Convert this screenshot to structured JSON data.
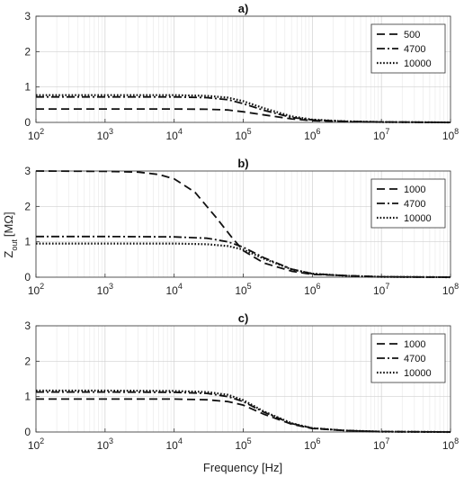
{
  "figure": {
    "ylabel_main": "Z",
    "ylabel_sub": "out",
    "ylabel_unit": "[MΩ]",
    "xlabel": "Frequency [Hz]"
  },
  "chart_data": [
    {
      "type": "line",
      "title": "a)",
      "xlabel": "",
      "ylabel": "",
      "xscale": "log",
      "xlim": [
        100,
        100000000
      ],
      "ylim": [
        0,
        3
      ],
      "x_ticks": [
        100,
        1000,
        10000,
        100000,
        1000000,
        10000000,
        100000000
      ],
      "x_tick_labels": [
        {
          "base": "10",
          "exp": "2"
        },
        {
          "base": "10",
          "exp": "3"
        },
        {
          "base": "10",
          "exp": "4"
        },
        {
          "base": "10",
          "exp": "5"
        },
        {
          "base": "10",
          "exp": "6"
        },
        {
          "base": "10",
          "exp": "7"
        },
        {
          "base": "10",
          "exp": "8"
        }
      ],
      "y_ticks": [
        0,
        1,
        2,
        3
      ],
      "y_tick_labels": [
        "0",
        "1",
        "2",
        "3"
      ],
      "grid": true,
      "legend_position": "top-right",
      "series": [
        {
          "name": "500",
          "style": "dashed",
          "x": [
            100,
            1000,
            10000,
            30000,
            60000,
            100000,
            200000,
            500000,
            1000000,
            3000000,
            10000000,
            100000000
          ],
          "y": [
            0.38,
            0.38,
            0.38,
            0.37,
            0.35,
            0.3,
            0.21,
            0.1,
            0.05,
            0.02,
            0.01,
            0.0
          ]
        },
        {
          "name": "4700",
          "style": "dashdot",
          "x": [
            100,
            1000,
            10000,
            30000,
            60000,
            100000,
            200000,
            500000,
            1000000,
            3000000,
            10000000,
            100000000
          ],
          "y": [
            0.72,
            0.72,
            0.72,
            0.7,
            0.64,
            0.53,
            0.34,
            0.14,
            0.07,
            0.03,
            0.01,
            0.0
          ]
        },
        {
          "name": "10000",
          "style": "dotted",
          "x": [
            100,
            1000,
            10000,
            30000,
            60000,
            100000,
            200000,
            500000,
            1000000,
            3000000,
            10000000,
            100000000
          ],
          "y": [
            0.77,
            0.77,
            0.77,
            0.75,
            0.7,
            0.6,
            0.4,
            0.17,
            0.08,
            0.03,
            0.01,
            0.0
          ]
        }
      ]
    },
    {
      "type": "line",
      "title": "b)",
      "xlabel": "",
      "ylabel": "Z_out [MΩ]",
      "xscale": "log",
      "xlim": [
        100,
        100000000
      ],
      "ylim": [
        0,
        3
      ],
      "x_ticks": [
        100,
        1000,
        10000,
        100000,
        1000000,
        10000000,
        100000000
      ],
      "x_tick_labels": [
        {
          "base": "10",
          "exp": "2"
        },
        {
          "base": "10",
          "exp": "3"
        },
        {
          "base": "10",
          "exp": "4"
        },
        {
          "base": "10",
          "exp": "5"
        },
        {
          "base": "10",
          "exp": "6"
        },
        {
          "base": "10",
          "exp": "7"
        },
        {
          "base": "10",
          "exp": "8"
        }
      ],
      "y_ticks": [
        0,
        1,
        2,
        3
      ],
      "y_tick_labels": [
        "0",
        "1",
        "2",
        "3"
      ],
      "grid": true,
      "legend_position": "top-right",
      "series": [
        {
          "name": "1000",
          "style": "dashed",
          "x": [
            100,
            1000,
            3000,
            6000,
            10000,
            20000,
            40000,
            70000,
            100000,
            200000,
            500000,
            1000000,
            10000000,
            100000000
          ],
          "y": [
            3.0,
            2.99,
            2.97,
            2.9,
            2.78,
            2.4,
            1.7,
            1.1,
            0.75,
            0.4,
            0.17,
            0.08,
            0.01,
            0.0
          ]
        },
        {
          "name": "4700",
          "style": "dashdot",
          "x": [
            100,
            1000,
            10000,
            30000,
            60000,
            100000,
            200000,
            500000,
            1000000,
            3000000,
            10000000,
            100000000
          ],
          "y": [
            1.15,
            1.15,
            1.14,
            1.1,
            1.0,
            0.85,
            0.55,
            0.23,
            0.1,
            0.04,
            0.01,
            0.0
          ]
        },
        {
          "name": "10000",
          "style": "dotted",
          "x": [
            100,
            1000,
            10000,
            30000,
            60000,
            100000,
            200000,
            500000,
            1000000,
            3000000,
            10000000,
            100000000
          ],
          "y": [
            0.95,
            0.95,
            0.95,
            0.93,
            0.88,
            0.78,
            0.52,
            0.22,
            0.1,
            0.04,
            0.01,
            0.0
          ]
        }
      ]
    },
    {
      "type": "line",
      "title": "c)",
      "xlabel": "Frequency [Hz]",
      "ylabel": "",
      "xscale": "log",
      "xlim": [
        100,
        100000000
      ],
      "ylim": [
        0,
        3
      ],
      "x_ticks": [
        100,
        1000,
        10000,
        100000,
        1000000,
        10000000,
        100000000
      ],
      "x_tick_labels": [
        {
          "base": "10",
          "exp": "2"
        },
        {
          "base": "10",
          "exp": "3"
        },
        {
          "base": "10",
          "exp": "4"
        },
        {
          "base": "10",
          "exp": "5"
        },
        {
          "base": "10",
          "exp": "6"
        },
        {
          "base": "10",
          "exp": "7"
        },
        {
          "base": "10",
          "exp": "8"
        }
      ],
      "y_ticks": [
        0,
        1,
        2,
        3
      ],
      "y_tick_labels": [
        "0",
        "1",
        "2",
        "3"
      ],
      "grid": true,
      "legend_position": "top-right",
      "series": [
        {
          "name": "1000",
          "style": "dashed",
          "x": [
            100,
            1000,
            10000,
            30000,
            60000,
            100000,
            200000,
            500000,
            1000000,
            3000000,
            10000000,
            100000000
          ],
          "y": [
            0.93,
            0.93,
            0.93,
            0.91,
            0.86,
            0.76,
            0.5,
            0.22,
            0.1,
            0.04,
            0.01,
            0.0
          ]
        },
        {
          "name": "4700",
          "style": "dashdot",
          "x": [
            100,
            1000,
            10000,
            30000,
            60000,
            100000,
            200000,
            500000,
            1000000,
            3000000,
            10000000,
            100000000
          ],
          "y": [
            1.13,
            1.13,
            1.12,
            1.09,
            1.0,
            0.86,
            0.56,
            0.24,
            0.11,
            0.04,
            0.01,
            0.0
          ]
        },
        {
          "name": "10000",
          "style": "dotted",
          "x": [
            100,
            1000,
            10000,
            30000,
            60000,
            100000,
            200000,
            500000,
            1000000,
            3000000,
            10000000,
            100000000
          ],
          "y": [
            1.17,
            1.17,
            1.16,
            1.13,
            1.05,
            0.9,
            0.58,
            0.25,
            0.11,
            0.04,
            0.01,
            0.0
          ]
        }
      ]
    }
  ]
}
